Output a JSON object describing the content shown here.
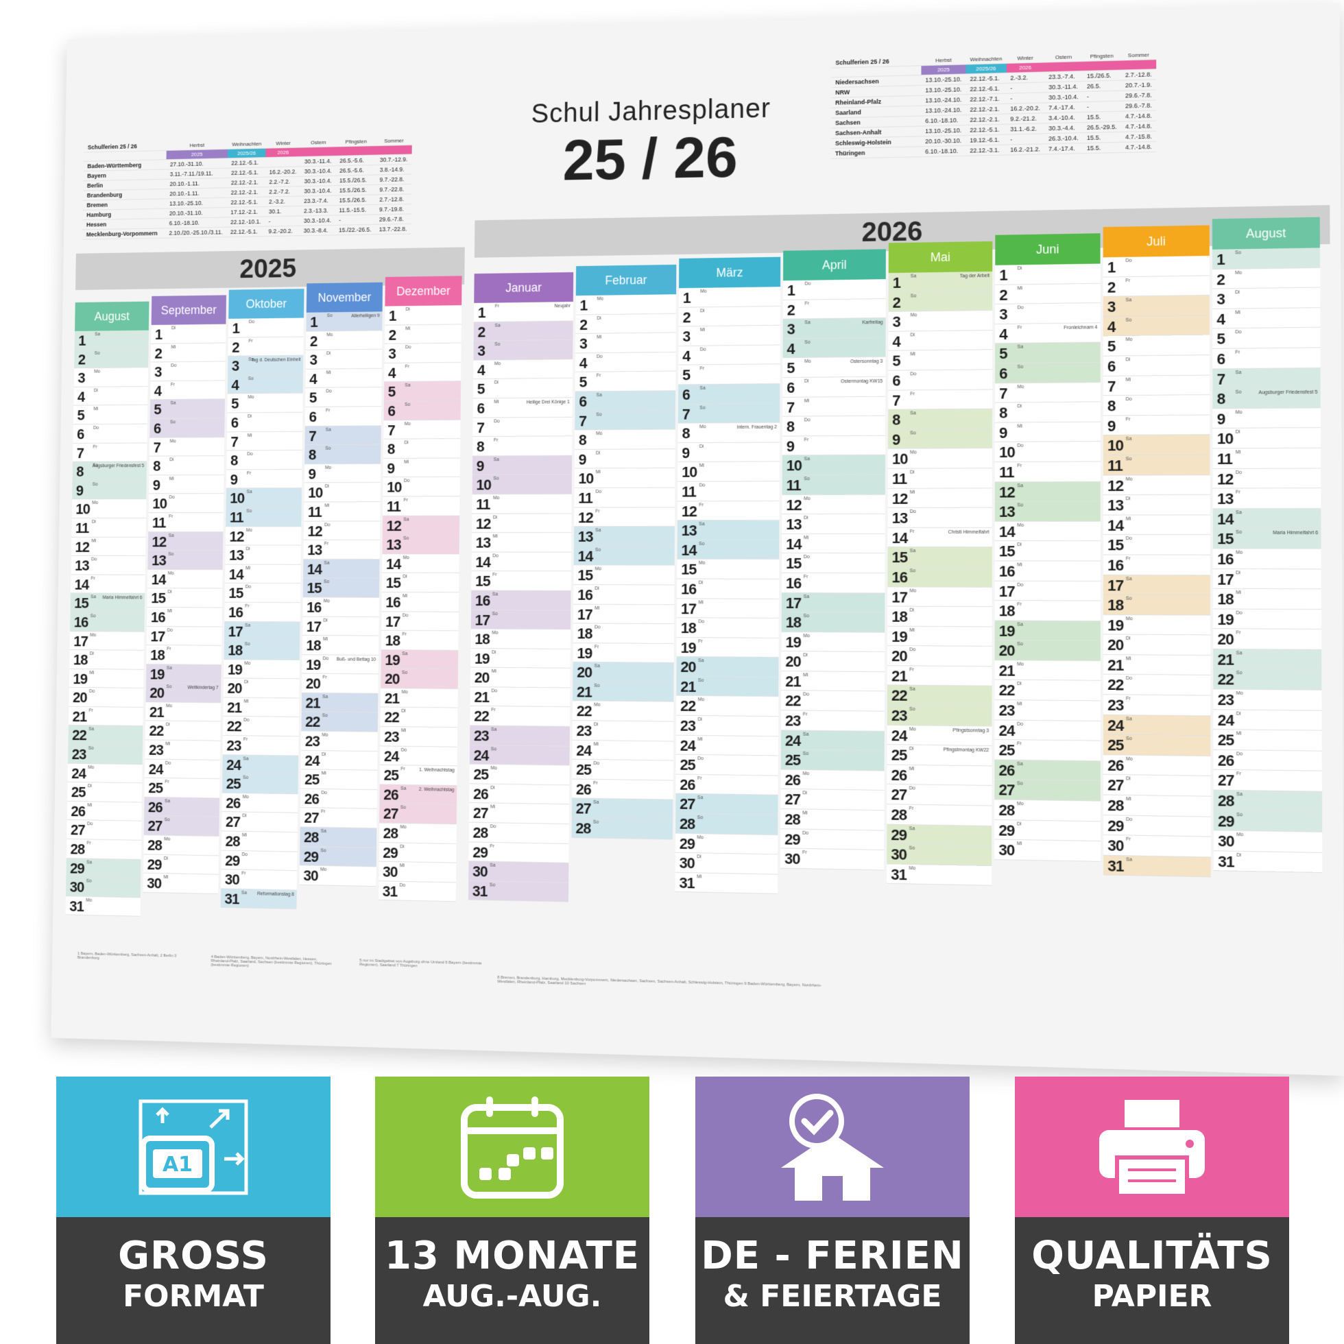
{
  "title": {
    "line1": "Schul Jahresplaner",
    "line2": "25 / 26"
  },
  "colors": {
    "aug": "#6dc5a3",
    "sep": "#9a7fc7",
    "okt": "#5ab8e0",
    "nov": "#5b8fd6",
    "dez": "#ee6aa7",
    "jan": "#a070c0",
    "feb": "#4db4d6",
    "mrz": "#3fb4d0",
    "apr": "#44b89a",
    "mai": "#8fc73e",
    "jun": "#53b84a",
    "jul": "#f6a81c",
    "aug2": "#6dc5a3"
  },
  "ferien_left": {
    "title": "Schulferien 25 / 26",
    "cols": [
      "Herbst",
      "Weihnachten",
      "Winter",
      "Ostern",
      "Pfingsten",
      "Sommer"
    ],
    "years": [
      "2025",
      "2025/26",
      "2026"
    ],
    "rows": [
      [
        "Baden-Württemberg",
        "27.10.-31.10.",
        "22.12.-5.1.",
        "",
        "30.3.-11.4.",
        "26.5.-5.6.",
        "30.7.-12.9."
      ],
      [
        "Bayern",
        "3.11.-7.11./19.11.",
        "22.12.-5.1.",
        "16.2.-20.2.",
        "30.3.-10.4.",
        "26.5.-5.6.",
        "3.8.-14.9."
      ],
      [
        "Berlin",
        "20.10.-1.11.",
        "22.12.-2.1.",
        "2.2.-7.2.",
        "30.3.-10.4.",
        "15.5./26.5.",
        "9.7.-22.8."
      ],
      [
        "Brandenburg",
        "20.10.-1.11.",
        "22.12.-2.1.",
        "2.2.-7.2.",
        "30.3.-10.4.",
        "15.5./26.5.",
        "9.7.-22.8."
      ],
      [
        "Bremen",
        "13.10.-25.10.",
        "22.12.-5.1.",
        "2.-3.2.",
        "23.3.-7.4.",
        "15.5./26.5.",
        "2.7.-12.8."
      ],
      [
        "Hamburg",
        "20.10.-31.10.",
        "17.12.-2.1.",
        "30.1.",
        "2.3.-13.3.",
        "11.5.-15.5.",
        "9.7.-19.8."
      ],
      [
        "Hessen",
        "6.10.-18.10.",
        "22.12.-10.1.",
        "-",
        "30.3.-10.4.",
        "-",
        "29.6.-7.8."
      ],
      [
        "Mecklenburg-Vorpommern",
        "2.10./20.-25.10./3.11.",
        "22.12.-5.1.",
        "9.2.-20.2.",
        "30.3.-8.4.",
        "15./22.-26.5.",
        "13.7.-22.8."
      ]
    ]
  },
  "ferien_right": {
    "title": "Schulferien 25 / 26",
    "cols": [
      "Herbst",
      "Weihnachten",
      "Winter",
      "Ostern",
      "Pfingsten",
      "Sommer"
    ],
    "years": [
      "2025",
      "2025/26",
      "2026"
    ],
    "rows": [
      [
        "Niedersachsen",
        "13.10.-25.10.",
        "22.12.-5.1.",
        "2.-3.2.",
        "23.3.-7.4.",
        "15./26.5.",
        "2.7.-12.8."
      ],
      [
        "NRW",
        "13.10.-25.10.",
        "22.12.-6.1.",
        "-",
        "30.3.-11.4.",
        "26.5.",
        "20.7.-1.9."
      ],
      [
        "Rheinland-Pfalz",
        "13.10.-24.10.",
        "22.12.-7.1.",
        "-",
        "30.3.-10.4.",
        "-",
        "29.6.-7.8."
      ],
      [
        "Saarland",
        "13.10.-24.10.",
        "22.12.-2.1.",
        "16.2.-20.2.",
        "7.4.-17.4.",
        "-",
        "29.6.-7.8."
      ],
      [
        "Sachsen",
        "6.10.-18.10.",
        "22.12.-2.1.",
        "9.2.-21.2.",
        "3.4.-10.4.",
        "15.5.",
        "4.7.-14.8."
      ],
      [
        "Sachsen-Anhalt",
        "13.10.-25.10.",
        "22.12.-5.1.",
        "31.1.-6.2.",
        "30.3.-4.4.",
        "26.5.-29.5.",
        "4.7.-14.8."
      ],
      [
        "Schleswig-Holstein",
        "20.10.-30.10.",
        "19.12.-6.1.",
        "-",
        "26.3.-10.4.",
        "15.5.",
        "4.7.-15.8."
      ],
      [
        "Thüringen",
        "6.10.-18.10.",
        "22.12.-3.1.",
        "16.2.-21.2.",
        "7.4.-17.4.",
        "15.5.",
        "4.7.-14.8."
      ]
    ]
  },
  "years": {
    "y2025": "2025",
    "y2026": "2026"
  },
  "months": [
    {
      "name": "August",
      "days": 31,
      "start": 5,
      "color": "#6dc5a3"
    },
    {
      "name": "September",
      "days": 30,
      "start": 1,
      "color": "#9a7fc7"
    },
    {
      "name": "Oktober",
      "days": 31,
      "start": 3,
      "color": "#5ab8e0"
    },
    {
      "name": "November",
      "days": 30,
      "start": 6,
      "color": "#5b8fd6"
    },
    {
      "name": "Dezember",
      "days": 31,
      "start": 1,
      "color": "#ee6aa7"
    },
    {
      "name": "Januar",
      "days": 31,
      "start": 4,
      "color": "#a070c0"
    },
    {
      "name": "Februar",
      "days": 28,
      "start": 0,
      "color": "#4db4d6"
    },
    {
      "name": "März",
      "days": 31,
      "start": 0,
      "color": "#3fb4d0"
    },
    {
      "name": "April",
      "days": 30,
      "start": 3,
      "color": "#44b89a"
    },
    {
      "name": "Mai",
      "days": 31,
      "start": 5,
      "color": "#8fc73e"
    },
    {
      "name": "Juni",
      "days": 30,
      "start": 1,
      "color": "#53b84a"
    },
    {
      "name": "Juli",
      "days": 31,
      "start": 3,
      "color": "#f6a81c"
    },
    {
      "name": "August",
      "days": 31,
      "start": 6,
      "color": "#6dc5a3"
    }
  ],
  "weekdays": [
    "Mo",
    "Di",
    "Mi",
    "Do",
    "Fr",
    "Sa",
    "So"
  ],
  "notes": {
    "0-8": "Augsburger Friedensfest 5",
    "0-15": "Maria Himmelfahrt 6",
    "1-20": "Weltkindertag 7",
    "2-3": "Tag d. Deutschen Einheit",
    "2-31": "Reformationstag 8",
    "3-1": "Allerheiligen 9",
    "3-19": "Buß- und Bettag 10",
    "4-25": "1. Weihnachtstag",
    "4-26": "2. Weihnachtstag",
    "5-1": "Neujahr",
    "5-6": "Heilige Drei Könige 1",
    "7-8": "Intern. Frauentag 2",
    "8-3": "Karfreitag",
    "8-5": "Ostersonntag 3",
    "8-6": "Ostermontag KW15",
    "9-1": "Tag der Arbeit",
    "9-14": "Christi Himmelfahrt",
    "9-24": "Pfingstsonntag 3",
    "9-25": "Pfingstmontag KW22",
    "10-4": "Fronleichnam 4",
    "12-8": "Augsburger Friedensfest 5",
    "12-15": "Maria Himmelfahrt 6"
  },
  "footnotes": [
    "1 Bayern, Baden-Württemberg, Sachsen-Anhalt, 2 Berlin 3 Brandenburg",
    "4 Baden-Württemberg, Bayern, Nordrhein-Westfalen, Hessen, Rheinland-Pfalz, Saarland, Sachsen (bestimmte Regionen), Thüringen (bestimmte Regionen)",
    "5 nur im Stadtgebiet von Augsburg ohne Umland 6 Bayern (bestimmte Regionen), Saarland 7 Thüringen",
    "8 Bremen, Brandenburg, Hamburg, Mecklenburg-Vorpommern, Niedersachsen, Sachsen, Sachsen-Anhalt, Schleswig-Holstein, Thüringen 9 Baden-Württemberg, Bayern, Nordrhein-Westfalen, Rheinland-Pfalz, Saarland 10 Sachsen"
  ],
  "tiles": [
    {
      "l1": "GROSS",
      "l2": "FORMAT",
      "color": "#3db8d9",
      "icon": "a1-format-icon",
      "badge": "A1"
    },
    {
      "l1": "13 MONATE",
      "l2": "AUG.-AUG.",
      "color": "#8cc43c",
      "icon": "calendar-icon"
    },
    {
      "l1": "DE - FERIEN",
      "l2": "& FEIERTAGE",
      "color": "#9079bb",
      "icon": "house-check-icon"
    },
    {
      "l1": "QUALITÄTS",
      "l2": "PAPIER",
      "color": "#ea5e9f",
      "icon": "printer-icon"
    }
  ]
}
